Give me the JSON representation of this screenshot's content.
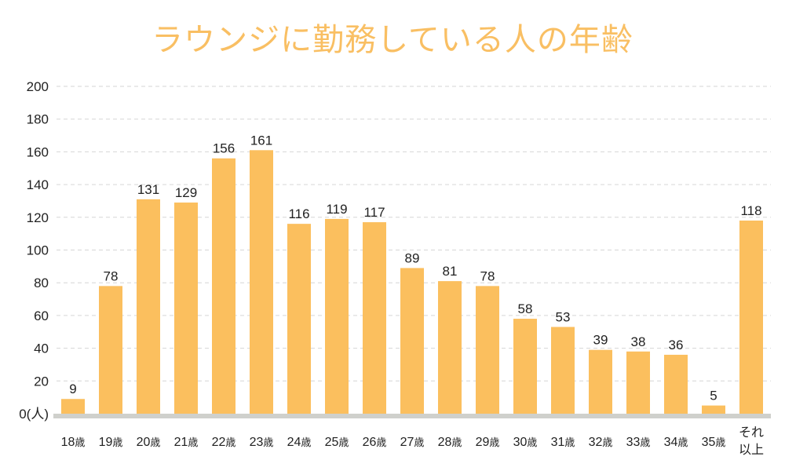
{
  "chart_data": {
    "type": "bar",
    "title": "ラウンジに勤務している人の年齢",
    "categories": [
      [
        "18歳"
      ],
      [
        "19歳"
      ],
      [
        "20歳"
      ],
      [
        "21歳"
      ],
      [
        "22歳"
      ],
      [
        "23歳"
      ],
      [
        "24歳"
      ],
      [
        "25歳"
      ],
      [
        "26歳"
      ],
      [
        "27歳"
      ],
      [
        "28歳"
      ],
      [
        "29歳"
      ],
      [
        "30歳"
      ],
      [
        "31歳"
      ],
      [
        "32歳"
      ],
      [
        "33歳"
      ],
      [
        "34歳"
      ],
      [
        "35歳"
      ],
      [
        "それ",
        "以上"
      ]
    ],
    "values": [
      9,
      78,
      131,
      129,
      156,
      161,
      116,
      119,
      117,
      89,
      81,
      78,
      58,
      53,
      39,
      38,
      36,
      5,
      118
    ],
    "ylim": [
      0,
      200
    ],
    "yticks": [
      "0(人)",
      "20",
      "40",
      "60",
      "80",
      "100",
      "120",
      "140",
      "160",
      "180",
      "200"
    ],
    "grid": true,
    "colors": {
      "bar": "#fbbf5e",
      "title": "#f9bf63",
      "baseline": "#cfd0cc",
      "grid": "#d6d6d6"
    }
  }
}
